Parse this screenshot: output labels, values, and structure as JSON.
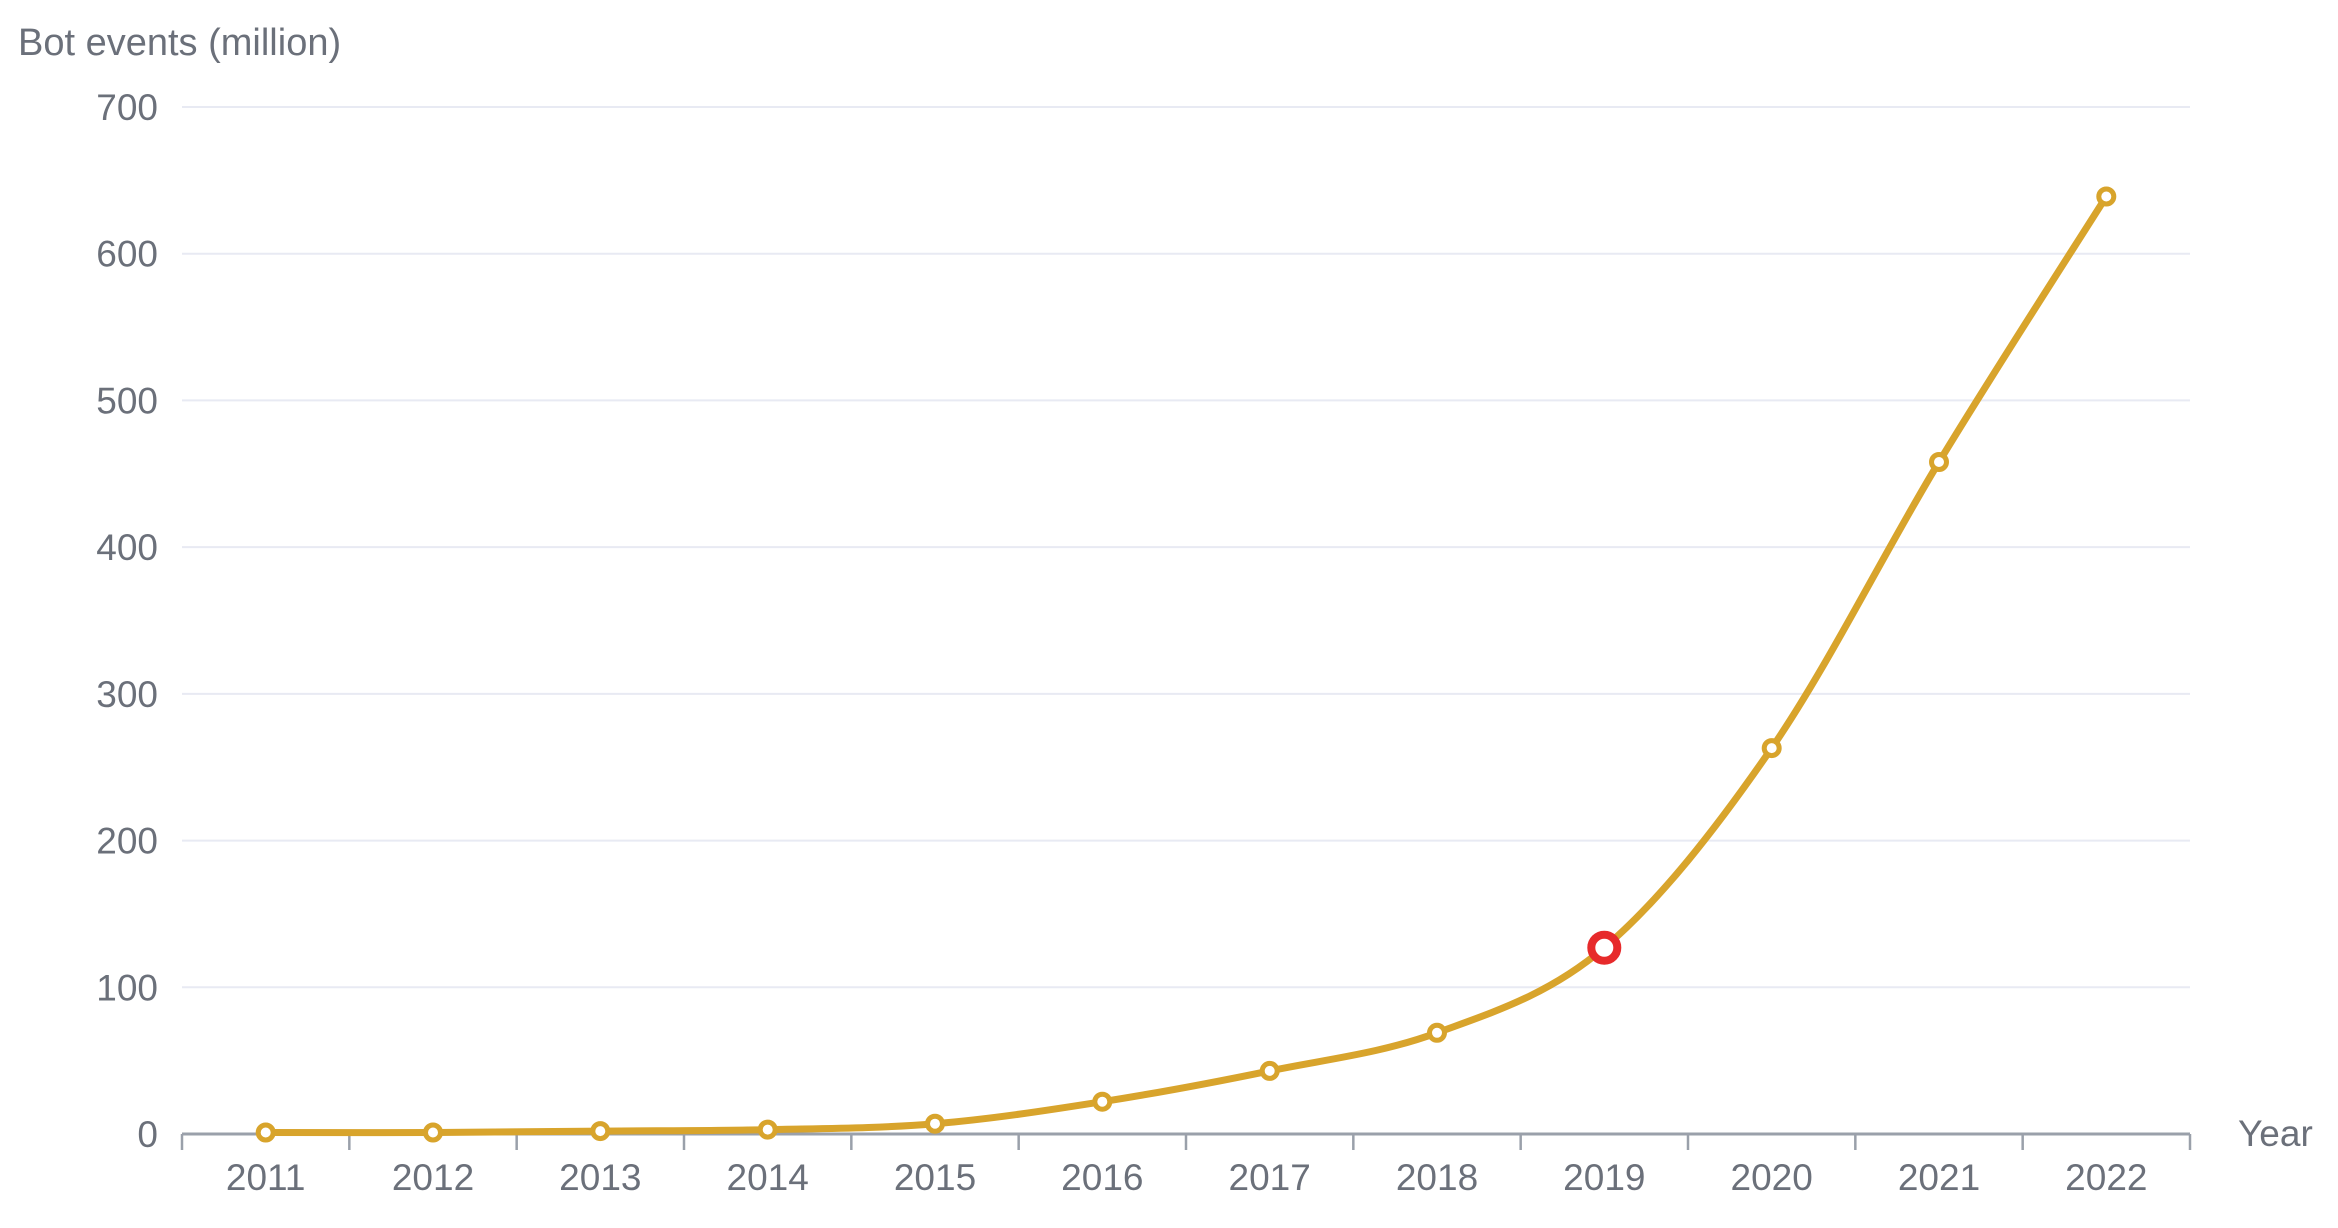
{
  "chart_data": {
    "type": "line",
    "title": "Bot events (million)",
    "xlabel": "Year",
    "ylabel": "Bot events (million)",
    "x": [
      "2011",
      "2012",
      "2013",
      "2014",
      "2015",
      "2016",
      "2017",
      "2018",
      "2019",
      "2020",
      "2021",
      "2022"
    ],
    "series": [
      {
        "name": "Bot events",
        "values": [
          1,
          1,
          2,
          3,
          7,
          22,
          43,
          69,
          127,
          263,
          458,
          639
        ]
      }
    ],
    "ylim": [
      0,
      700
    ],
    "yticks": [
      0,
      100,
      200,
      300,
      400,
      500,
      600,
      700
    ],
    "grid": "horizontal",
    "legend": "none",
    "highlight_point": {
      "x": "2019",
      "value": 127
    },
    "colors": {
      "line": "#D8A42C",
      "marker_fill": "#FFFFFF",
      "highlight_ring": "#E72A2B",
      "gridline": "#E8EAF3",
      "axis": "#9AA0AA",
      "text": "#6B707A"
    }
  }
}
